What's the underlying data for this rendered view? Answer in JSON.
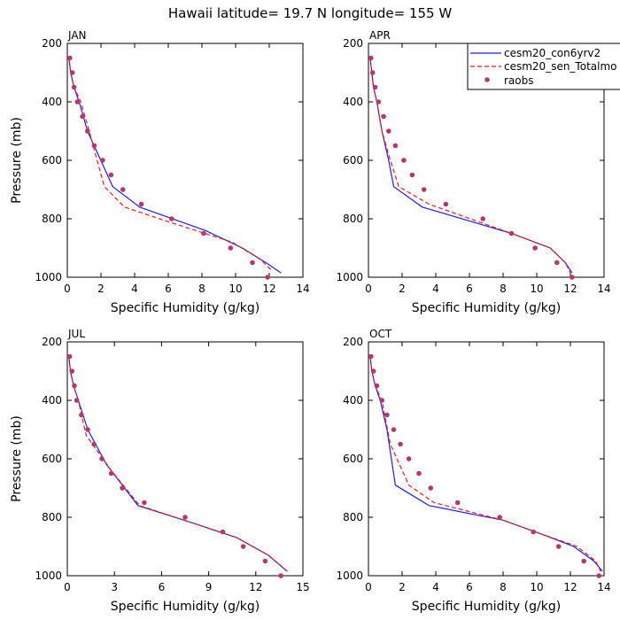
{
  "title": "Hawaii  latitude= 19.7 N longitude= 155 W",
  "colors": {
    "cesm20_con6yrv2": "#1f1fe0",
    "cesm20_sen_Totalmo": "#e01f1f",
    "raobs": "#b03a6a"
  },
  "legend": {
    "placement": "top-right of APR panel",
    "entries": [
      {
        "label": "cesm20_con6yrv2",
        "style": "solid line"
      },
      {
        "label": "cesm20_sen_Totalmo",
        "style": "dashed line"
      },
      {
        "label": "raobs",
        "style": "dots"
      }
    ]
  },
  "chart_data": [
    {
      "type": "line",
      "panel": "JAN",
      "xlabel": "Specific Humidity (g/kg)",
      "ylabel": "Pressure (mb)",
      "xlim": [
        0,
        14
      ],
      "ylim": [
        1000,
        200
      ],
      "y_reversed": true,
      "xticks": [
        0,
        2,
        4,
        6,
        8,
        10,
        12,
        14
      ],
      "yticks": [
        200,
        400,
        600,
        800,
        1000
      ],
      "series": [
        {
          "name": "cesm20_con6yrv2",
          "style": "solid",
          "x": [
            0.1,
            0.2,
            0.4,
            0.7,
            1.2,
            2.7,
            4.3,
            8.2,
            10.4,
            11.8,
            12.7
          ],
          "y": [
            250,
            300,
            350,
            400,
            500,
            690,
            760,
            840,
            900,
            950,
            985
          ]
        },
        {
          "name": "cesm20_sen_Totalmo",
          "style": "dashed",
          "x": [
            0.1,
            0.2,
            0.4,
            0.8,
            1.3,
            2.2,
            3.4,
            6.0,
            9.8,
            11.5,
            12.2
          ],
          "y": [
            250,
            300,
            350,
            400,
            500,
            690,
            760,
            810,
            880,
            940,
            980
          ]
        },
        {
          "name": "raobs",
          "style": "markers",
          "x": [
            0.15,
            0.3,
            0.4,
            0.6,
            0.9,
            1.2,
            1.6,
            2.1,
            2.6,
            3.3,
            4.4,
            6.2,
            8.1,
            9.7,
            11.0,
            11.9
          ],
          "y": [
            250,
            300,
            350,
            400,
            450,
            500,
            550,
            600,
            650,
            700,
            750,
            800,
            850,
            900,
            950,
            1000
          ]
        }
      ]
    },
    {
      "type": "line",
      "panel": "APR",
      "xlabel": "Specific Humidity (g/kg)",
      "ylabel": "",
      "xlim": [
        0,
        14
      ],
      "ylim": [
        1000,
        200
      ],
      "y_reversed": true,
      "xticks": [
        0,
        2,
        4,
        6,
        8,
        10,
        12,
        14
      ],
      "yticks": [
        200,
        400,
        600,
        800,
        1000
      ],
      "series": [
        {
          "name": "cesm20_con6yrv2",
          "style": "solid",
          "x": [
            0.1,
            0.2,
            0.3,
            0.5,
            0.8,
            1.2,
            1.5,
            3.2,
            8.5,
            10.8,
            11.7,
            12.1
          ],
          "y": [
            250,
            300,
            350,
            400,
            500,
            600,
            690,
            760,
            850,
            900,
            950,
            985
          ]
        },
        {
          "name": "cesm20_sen_Totalmo",
          "style": "dashed",
          "x": [
            0.1,
            0.2,
            0.3,
            0.5,
            0.8,
            1.3,
            1.8,
            3.6,
            8.5,
            10.8,
            11.7,
            12.0
          ],
          "y": [
            250,
            300,
            350,
            400,
            500,
            600,
            690,
            750,
            850,
            900,
            950,
            985
          ]
        },
        {
          "name": "raobs",
          "style": "markers",
          "x": [
            0.15,
            0.25,
            0.4,
            0.6,
            0.9,
            1.2,
            1.6,
            2.1,
            2.6,
            3.3,
            4.6,
            6.8,
            8.5,
            9.9,
            11.2,
            12.1
          ],
          "y": [
            250,
            300,
            350,
            400,
            450,
            500,
            550,
            600,
            650,
            700,
            750,
            800,
            850,
            900,
            950,
            1000
          ]
        }
      ]
    },
    {
      "type": "line",
      "panel": "JUL",
      "xlabel": "Specific Humidity (g/kg)",
      "ylabel": "Pressure (mb)",
      "xlim": [
        0,
        15
      ],
      "ylim": [
        1000,
        200
      ],
      "y_reversed": true,
      "xticks": [
        0,
        3,
        6,
        9,
        12,
        15
      ],
      "yticks": [
        200,
        400,
        600,
        800,
        1000
      ],
      "series": [
        {
          "name": "cesm20_con6yrv2",
          "style": "solid",
          "x": [
            0.1,
            0.2,
            0.4,
            0.7,
            1.3,
            2.5,
            4.5,
            8.0,
            10.8,
            12.8,
            14.0
          ],
          "y": [
            250,
            300,
            350,
            400,
            500,
            620,
            760,
            820,
            870,
            930,
            985
          ]
        },
        {
          "name": "cesm20_sen_Totalmo",
          "style": "dashed",
          "x": [
            0.1,
            0.2,
            0.4,
            0.7,
            1.2,
            2.8,
            4.6,
            8.0,
            10.8,
            12.8,
            13.9
          ],
          "y": [
            250,
            300,
            350,
            400,
            520,
            640,
            760,
            820,
            870,
            930,
            980
          ]
        },
        {
          "name": "raobs",
          "style": "markers",
          "x": [
            0.15,
            0.3,
            0.45,
            0.6,
            0.9,
            1.3,
            1.7,
            2.2,
            2.8,
            3.5,
            4.9,
            7.5,
            9.9,
            11.2,
            12.6,
            13.6
          ],
          "y": [
            250,
            300,
            350,
            400,
            450,
            500,
            550,
            600,
            650,
            700,
            750,
            800,
            850,
            900,
            950,
            1000
          ]
        }
      ]
    },
    {
      "type": "line",
      "panel": "OCT",
      "xlabel": "Specific Humidity (g/kg)",
      "ylabel": "",
      "xlim": [
        0,
        14
      ],
      "ylim": [
        1000,
        200
      ],
      "y_reversed": true,
      "xticks": [
        0,
        2,
        4,
        6,
        8,
        10,
        12,
        14
      ],
      "yticks": [
        200,
        400,
        600,
        800,
        1000
      ],
      "series": [
        {
          "name": "cesm20_con6yrv2",
          "style": "solid",
          "x": [
            0.1,
            0.2,
            0.4,
            0.7,
            1.1,
            1.6,
            3.6,
            8.0,
            10.4,
            12.2,
            13.4,
            13.9
          ],
          "y": [
            250,
            300,
            350,
            400,
            500,
            690,
            760,
            810,
            860,
            900,
            950,
            985
          ]
        },
        {
          "name": "cesm20_sen_Totalmo",
          "style": "dashed",
          "x": [
            0.1,
            0.2,
            0.4,
            0.8,
            1.3,
            2.4,
            3.9,
            8.0,
            10.4,
            12.4,
            13.5,
            13.8
          ],
          "y": [
            250,
            300,
            350,
            400,
            550,
            690,
            750,
            810,
            860,
            900,
            950,
            985
          ]
        },
        {
          "name": "raobs",
          "style": "markers",
          "x": [
            0.15,
            0.3,
            0.5,
            0.8,
            1.1,
            1.5,
            1.9,
            2.4,
            3.0,
            3.7,
            5.3,
            7.8,
            9.8,
            11.3,
            12.8,
            13.7
          ],
          "y": [
            250,
            300,
            350,
            400,
            450,
            500,
            550,
            600,
            650,
            700,
            750,
            800,
            850,
            900,
            950,
            1000
          ]
        }
      ]
    }
  ]
}
